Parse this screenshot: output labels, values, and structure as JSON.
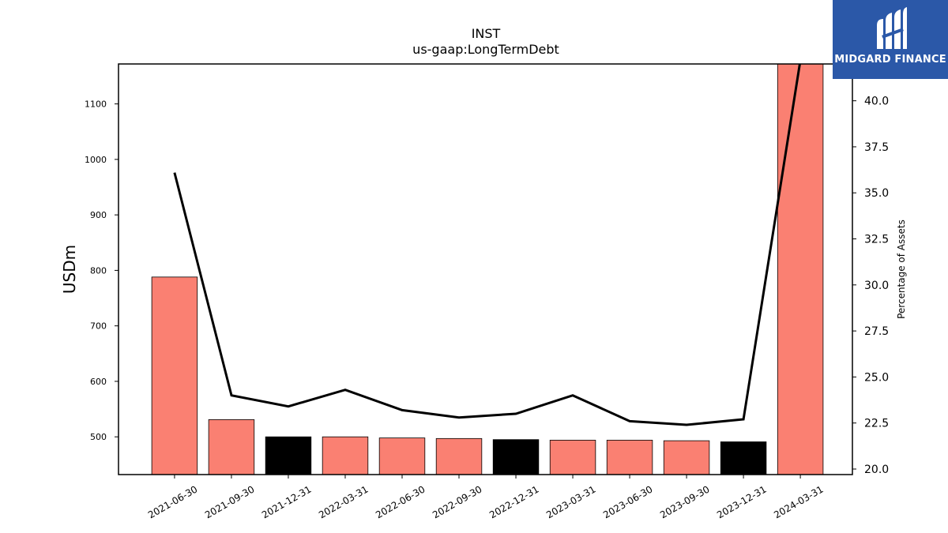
{
  "logo": {
    "text": "MIDGARD FINANCE",
    "background": "#2b58a8"
  },
  "chart_data": {
    "type": "bar",
    "title": "INST",
    "subtitle": "us-gaap:LongTermDebt",
    "ylabel": "USDm",
    "y2label": "Percentage of Assets",
    "categories": [
      "2021-06-30",
      "2021-09-30",
      "2021-12-31",
      "2022-03-31",
      "2022-06-30",
      "2022-09-30",
      "2022-12-31",
      "2023-03-31",
      "2023-06-30",
      "2023-09-30",
      "2023-12-31",
      "2024-03-31"
    ],
    "series": [
      {
        "type": "bar",
        "axis": "left",
        "values": [
          788,
          531,
          500,
          500,
          498,
          497,
          495,
          494,
          494,
          493,
          491,
          1180
        ],
        "colors": [
          "#fa8072",
          "#fa8072",
          "#000000",
          "#fa8072",
          "#fa8072",
          "#fa8072",
          "#000000",
          "#fa8072",
          "#fa8072",
          "#fa8072",
          "#000000",
          "#fa8072"
        ]
      },
      {
        "type": "line",
        "axis": "right",
        "color": "#000000",
        "values": [
          36.1,
          24.0,
          23.4,
          24.3,
          23.2,
          22.8,
          23.0,
          24.0,
          22.6,
          22.4,
          22.7,
          42.2
        ]
      }
    ],
    "ylim": [
      432,
      1172
    ],
    "yticks": [
      500,
      600,
      700,
      800,
      900,
      1000,
      1100
    ],
    "y2lim": [
      19.7,
      42.0
    ],
    "y2ticks": [
      "20.0",
      "22.5",
      "25.0",
      "27.5",
      "30.0",
      "32.5",
      "35.0",
      "37.5",
      "40.0"
    ],
    "grid": false
  }
}
